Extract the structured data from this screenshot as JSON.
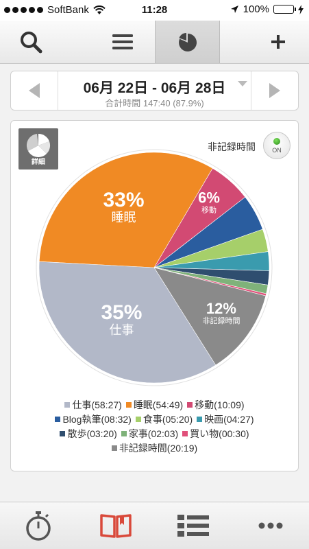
{
  "status_bar": {
    "carrier": "SoftBank",
    "time": "11:28",
    "battery": "100%"
  },
  "toolbar": {
    "buttons": [
      {
        "name": "search",
        "icon": "search-icon"
      },
      {
        "name": "list",
        "icon": "menu-icon"
      },
      {
        "name": "chart",
        "icon": "pie-chart-icon",
        "active": true
      },
      {
        "name": "add",
        "icon": "plus-icon"
      }
    ]
  },
  "date_nav": {
    "range": "06月 22日 - 06月 28日",
    "total": "合計時間 147:40 (87.9%)"
  },
  "chart_card": {
    "detail_label": "詳細",
    "unrecorded_label": "非記録時間",
    "toggle_label": "ON"
  },
  "chart_data": {
    "type": "pie",
    "title": "",
    "slices": [
      {
        "label": "睡眠",
        "duration": "54:49",
        "minutes": 3289,
        "percent_label": "33%",
        "color": "#f08a24"
      },
      {
        "label": "移動",
        "duration": "10:09",
        "minutes": 609,
        "percent_label": "6%",
        "color": "#d24a73"
      },
      {
        "label": "Blog執筆",
        "duration": "08:32",
        "minutes": 512,
        "percent_label": "",
        "color": "#2a5d9f"
      },
      {
        "label": "食事",
        "duration": "05:20",
        "minutes": 320,
        "percent_label": "",
        "color": "#a6cf6a"
      },
      {
        "label": "映画",
        "duration": "04:27",
        "minutes": 267,
        "percent_label": "",
        "color": "#3a9bae"
      },
      {
        "label": "散歩",
        "duration": "03:20",
        "minutes": 200,
        "percent_label": "",
        "color": "#2f4e6f"
      },
      {
        "label": "家事",
        "duration": "02:03",
        "minutes": 123,
        "percent_label": "",
        "color": "#7fb27a"
      },
      {
        "label": "買い物",
        "duration": "00:30",
        "minutes": 30,
        "percent_label": "",
        "color": "#e0507a"
      },
      {
        "label": "非記録時間",
        "duration": "20:19",
        "minutes": 1219,
        "percent_label": "12%",
        "color": "#8a8a8a"
      },
      {
        "label": "仕事",
        "duration": "58:27",
        "minutes": 3507,
        "percent_label": "35%",
        "color": "#b2b8c8"
      }
    ],
    "legend": [
      [
        {
          "label": "仕事(58:27)",
          "color": "#b2b8c8"
        },
        {
          "label": "睡眠(54:49)",
          "color": "#f08a24"
        },
        {
          "label": "移動(10:09)",
          "color": "#d24a73"
        }
      ],
      [
        {
          "label": "Blog執筆(08:32)",
          "color": "#2a5d9f"
        },
        {
          "label": "食事(05:20)",
          "color": "#a6cf6a"
        },
        {
          "label": "映画(04:27)",
          "color": "#3a9bae"
        }
      ],
      [
        {
          "label": "散歩(03:20)",
          "color": "#2f4e6f"
        },
        {
          "label": "家事(02:03)",
          "color": "#7fb27a"
        },
        {
          "label": "買い物(00:30)",
          "color": "#e0507a"
        }
      ],
      [
        {
          "label": "非記録時間(20:19)",
          "color": "#8a8a8a"
        }
      ]
    ]
  },
  "tab_bar": {
    "tabs": [
      {
        "name": "timer",
        "icon": "stopwatch-icon"
      },
      {
        "name": "log",
        "icon": "book-icon"
      },
      {
        "name": "list",
        "icon": "list-icon"
      },
      {
        "name": "more",
        "icon": "more-icon"
      }
    ]
  }
}
